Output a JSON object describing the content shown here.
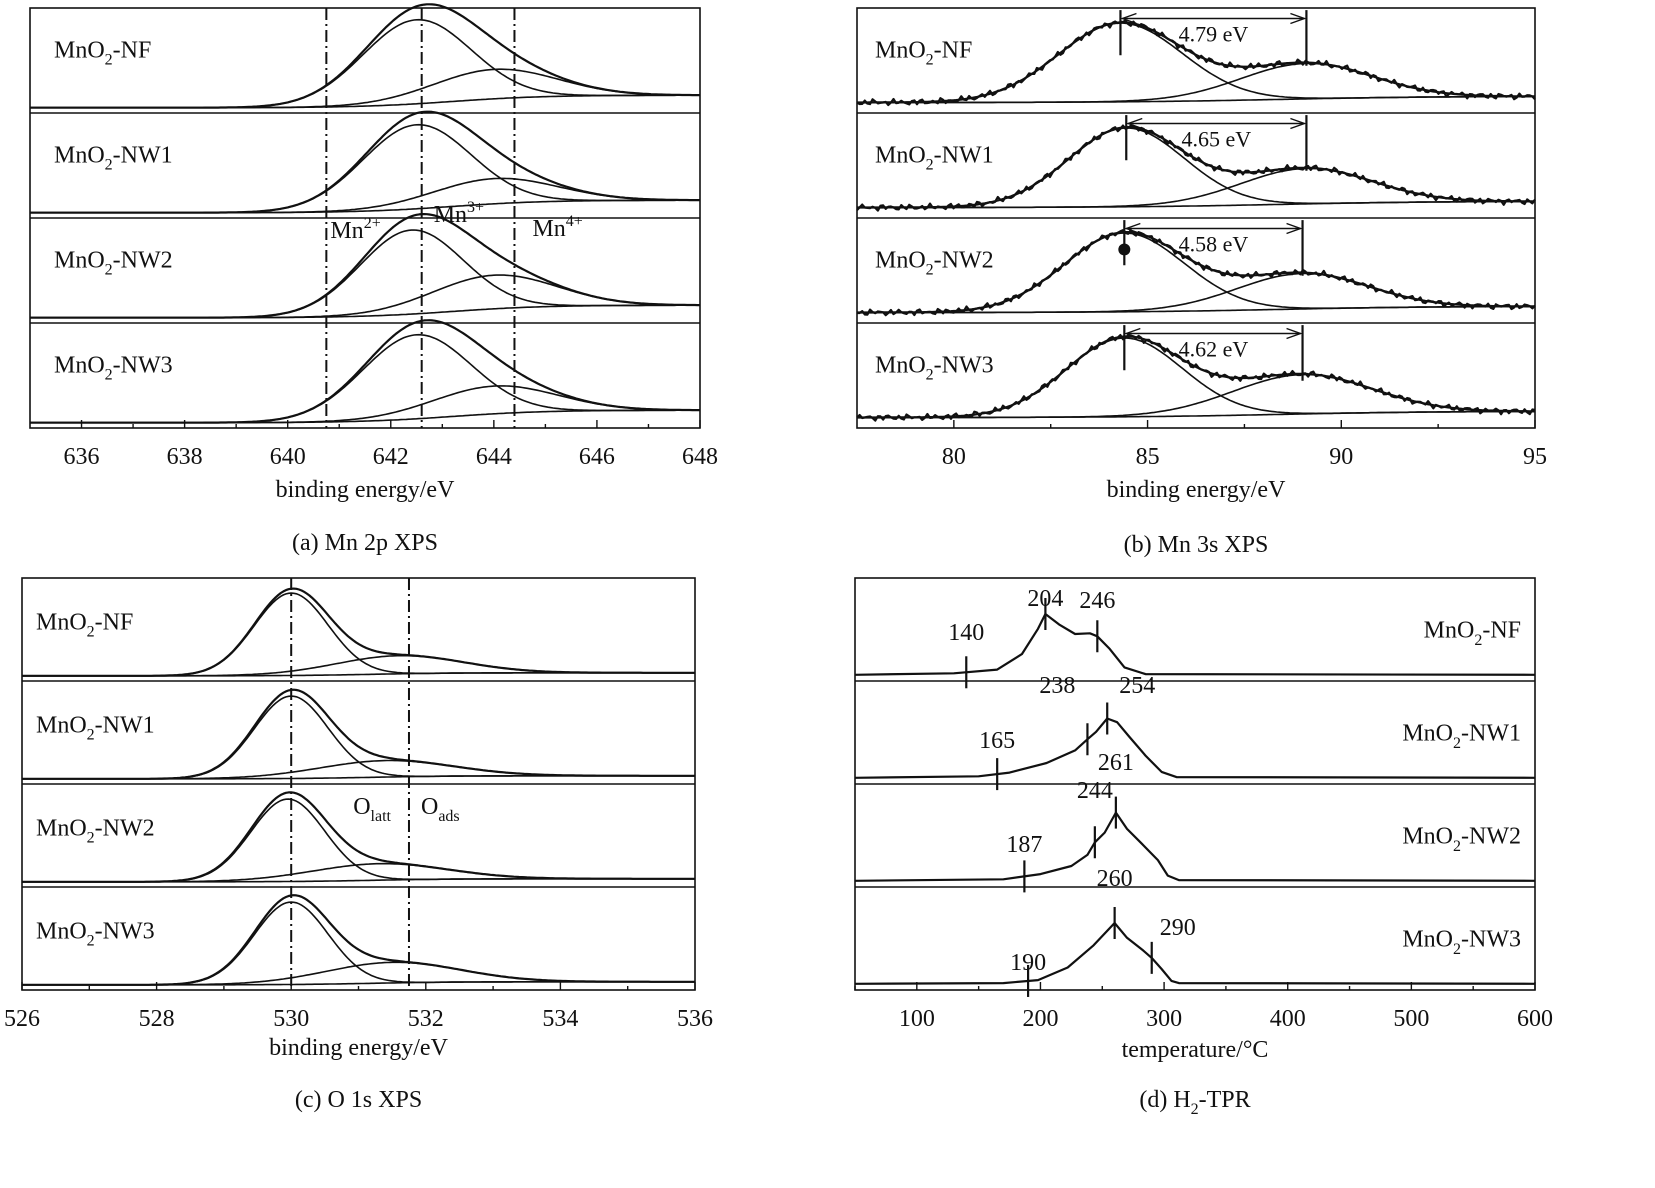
{
  "chart_data": [
    {
      "id": "a",
      "type": "line",
      "title": "(a) Mn 2p XPS",
      "xlabel": "binding energy/eV",
      "ylabel": "",
      "xlim": [
        635,
        648
      ],
      "xticks": [
        636,
        638,
        640,
        642,
        644,
        646,
        648
      ],
      "reference_lines": [
        {
          "x": 640.75,
          "label": "Mn",
          "sup": "2+"
        },
        {
          "x": 642.6,
          "label": "Mn",
          "sup": "3+"
        },
        {
          "x": 644.4,
          "label": "Mn",
          "sup": "4+"
        }
      ],
      "series": [
        {
          "name": "MnO2-NF",
          "label_main": "MnO",
          "label_sub": "2",
          "label_tail": "-NF",
          "components": [
            {
              "center": 642.5,
              "sigma": 1.05,
              "height": 1.0
            },
            {
              "center": 644.0,
              "sigma": 1.2,
              "height": 0.35
            }
          ]
        },
        {
          "name": "MnO2-NW1",
          "label_main": "MnO",
          "label_sub": "2",
          "label_tail": "-NW1",
          "components": [
            {
              "center": 642.5,
              "sigma": 1.05,
              "height": 1.0
            },
            {
              "center": 644.0,
              "sigma": 1.2,
              "height": 0.3
            }
          ]
        },
        {
          "name": "MnO2-NW2",
          "label_main": "MnO",
          "label_sub": "2",
          "label_tail": "-NW2",
          "components": [
            {
              "center": 642.4,
              "sigma": 1.0,
              "height": 1.0
            },
            {
              "center": 644.0,
              "sigma": 1.2,
              "height": 0.4
            }
          ]
        },
        {
          "name": "MnO2-NW3",
          "label_main": "MnO",
          "label_sub": "2",
          "label_tail": "-NW3",
          "components": [
            {
              "center": 642.5,
              "sigma": 1.05,
              "height": 1.0
            },
            {
              "center": 644.0,
              "sigma": 1.2,
              "height": 0.33
            }
          ]
        }
      ]
    },
    {
      "id": "b",
      "type": "line",
      "title": "(b) Mn 3s XPS",
      "xlabel": "binding energy/eV",
      "ylabel": "",
      "xlim": [
        77.5,
        95
      ],
      "xticks": [
        80,
        85,
        90,
        95
      ],
      "series": [
        {
          "name": "MnO2-NF",
          "label_main": "MnO",
          "label_sub": "2",
          "label_tail": "-NF",
          "splitting": "4.79 eV",
          "peak1": 84.3,
          "peak2": 89.1,
          "components": [
            {
              "center": 84.3,
              "sigma": 1.6,
              "height": 1.0
            },
            {
              "center": 89.1,
              "sigma": 1.7,
              "height": 0.45
            }
          ]
        },
        {
          "name": "MnO2-NW1",
          "label_main": "MnO",
          "label_sub": "2",
          "label_tail": "-NW1",
          "splitting": "4.65 eV",
          "peak1": 84.45,
          "peak2": 89.1,
          "components": [
            {
              "center": 84.45,
              "sigma": 1.5,
              "height": 1.0
            },
            {
              "center": 89.1,
              "sigma": 1.7,
              "height": 0.45
            }
          ]
        },
        {
          "name": "MnO2-NW2",
          "label_main": "MnO",
          "label_sub": "2",
          "label_tail": "-NW2",
          "splitting": "4.58 eV",
          "peak1": 84.4,
          "peak2": 89.0,
          "components": [
            {
              "center": 84.4,
              "sigma": 1.55,
              "height": 1.0
            },
            {
              "center": 89.0,
              "sigma": 1.7,
              "height": 0.45
            }
          ]
        },
        {
          "name": "MnO2-NW3",
          "label_main": "MnO",
          "label_sub": "2",
          "label_tail": "-NW3",
          "splitting": "4.62 eV",
          "peak1": 84.4,
          "peak2": 89.0,
          "components": [
            {
              "center": 84.4,
              "sigma": 1.5,
              "height": 1.0
            },
            {
              "center": 89.0,
              "sigma": 1.8,
              "height": 0.5
            }
          ]
        }
      ]
    },
    {
      "id": "c",
      "type": "line",
      "title": "(c) O 1s XPS",
      "xlabel": "binding energy/eV",
      "ylabel": "",
      "xlim": [
        526,
        536
      ],
      "xticks": [
        526,
        528,
        530,
        532,
        534,
        536
      ],
      "reference_lines": [
        {
          "x": 530.0,
          "label": "O",
          "sub": "latt"
        },
        {
          "x": 531.75,
          "label": "O",
          "sub": "ads"
        }
      ],
      "series": [
        {
          "name": "MnO2-NF",
          "label_main": "MnO",
          "label_sub": "2",
          "label_tail": "-NF",
          "components": [
            {
              "center": 530.0,
              "sigma": 0.55,
              "height": 1.0
            },
            {
              "center": 531.6,
              "sigma": 0.95,
              "height": 0.22
            }
          ]
        },
        {
          "name": "MnO2-NW1",
          "label_main": "MnO",
          "label_sub": "2",
          "label_tail": "-NW1",
          "components": [
            {
              "center": 530.0,
              "sigma": 0.55,
              "height": 1.0
            },
            {
              "center": 531.4,
              "sigma": 1.0,
              "height": 0.2
            }
          ]
        },
        {
          "name": "MnO2-NW2",
          "label_main": "MnO",
          "label_sub": "2",
          "label_tail": "-NW2",
          "components": [
            {
              "center": 529.95,
              "sigma": 0.55,
              "height": 1.0
            },
            {
              "center": 531.3,
              "sigma": 1.0,
              "height": 0.2
            }
          ]
        },
        {
          "name": "MnO2-NW3",
          "label_main": "MnO",
          "label_sub": "2",
          "label_tail": "-NW3",
          "components": [
            {
              "center": 530.0,
              "sigma": 0.55,
              "height": 1.0
            },
            {
              "center": 531.5,
              "sigma": 1.0,
              "height": 0.25
            }
          ]
        }
      ]
    },
    {
      "id": "d",
      "type": "line",
      "title": "(d) H2-TPR",
      "title_main": "(d) H",
      "title_sub": "2",
      "title_tail": "-TPR",
      "xlabel": "temperature/°C",
      "ylabel": "",
      "xlim": [
        50,
        600
      ],
      "xticks": [
        100,
        200,
        300,
        400,
        500,
        600
      ],
      "series": [
        {
          "name": "MnO2-NF",
          "label_main": "MnO",
          "label_sub": "2",
          "label_tail": "-NF",
          "points": [
            [
              50,
              0
            ],
            [
              130,
              0.02
            ],
            [
              165,
              0.07
            ],
            [
              185,
              0.28
            ],
            [
              198,
              0.62
            ],
            [
              204,
              0.82
            ],
            [
              215,
              0.68
            ],
            [
              228,
              0.55
            ],
            [
              240,
              0.56
            ],
            [
              246,
              0.52
            ],
            [
              256,
              0.35
            ],
            [
              268,
              0.1
            ],
            [
              285,
              0.01
            ],
            [
              600,
              0
            ]
          ],
          "peaks": [
            {
              "x": 140,
              "label": "140"
            },
            {
              "x": 204,
              "label": "204"
            },
            {
              "x": 246,
              "label": "246"
            }
          ]
        },
        {
          "name": "MnO2-NW1",
          "label_main": "MnO",
          "label_sub": "2",
          "label_tail": "-NW1",
          "points": [
            [
              50,
              0
            ],
            [
              150,
              0.02
            ],
            [
              175,
              0.07
            ],
            [
              205,
              0.2
            ],
            [
              228,
              0.37
            ],
            [
              238,
              0.52
            ],
            [
              245,
              0.62
            ],
            [
              254,
              0.8
            ],
            [
              262,
              0.75
            ],
            [
              272,
              0.55
            ],
            [
              285,
              0.3
            ],
            [
              298,
              0.08
            ],
            [
              310,
              0.01
            ],
            [
              600,
              0
            ]
          ],
          "peaks": [
            {
              "x": 165,
              "label": "165"
            },
            {
              "x": 238,
              "label": "238"
            },
            {
              "x": 254,
              "label": "254"
            }
          ]
        },
        {
          "name": "MnO2-NW2",
          "label_main": "MnO",
          "label_sub": "2",
          "label_tail": "-NW2",
          "points": [
            [
              50,
              0
            ],
            [
              170,
              0.02
            ],
            [
              200,
              0.09
            ],
            [
              225,
              0.2
            ],
            [
              238,
              0.35
            ],
            [
              244,
              0.52
            ],
            [
              252,
              0.65
            ],
            [
              261,
              0.92
            ],
            [
              270,
              0.7
            ],
            [
              282,
              0.5
            ],
            [
              295,
              0.28
            ],
            [
              303,
              0.07
            ],
            [
              312,
              0.01
            ],
            [
              600,
              0
            ]
          ],
          "peaks": [
            {
              "x": 187,
              "label": "187"
            },
            {
              "x": 244,
              "label": "244"
            },
            {
              "x": 261,
              "label": "261"
            }
          ]
        },
        {
          "name": "MnO2-NW3",
          "label_main": "MnO",
          "label_sub": "2",
          "label_tail": "-NW3",
          "points": [
            [
              50,
              0
            ],
            [
              170,
              0.01
            ],
            [
              198,
              0.05
            ],
            [
              222,
              0.22
            ],
            [
              243,
              0.52
            ],
            [
              260,
              0.82
            ],
            [
              270,
              0.62
            ],
            [
              283,
              0.45
            ],
            [
              290,
              0.35
            ],
            [
              298,
              0.2
            ],
            [
              306,
              0.04
            ],
            [
              312,
              0.01
            ],
            [
              600,
              0
            ]
          ],
          "peaks": [
            {
              "x": 190,
              "label": "190"
            },
            {
              "x": 260,
              "label": "260"
            },
            {
              "x": 290,
              "label": "290"
            }
          ]
        }
      ]
    }
  ]
}
